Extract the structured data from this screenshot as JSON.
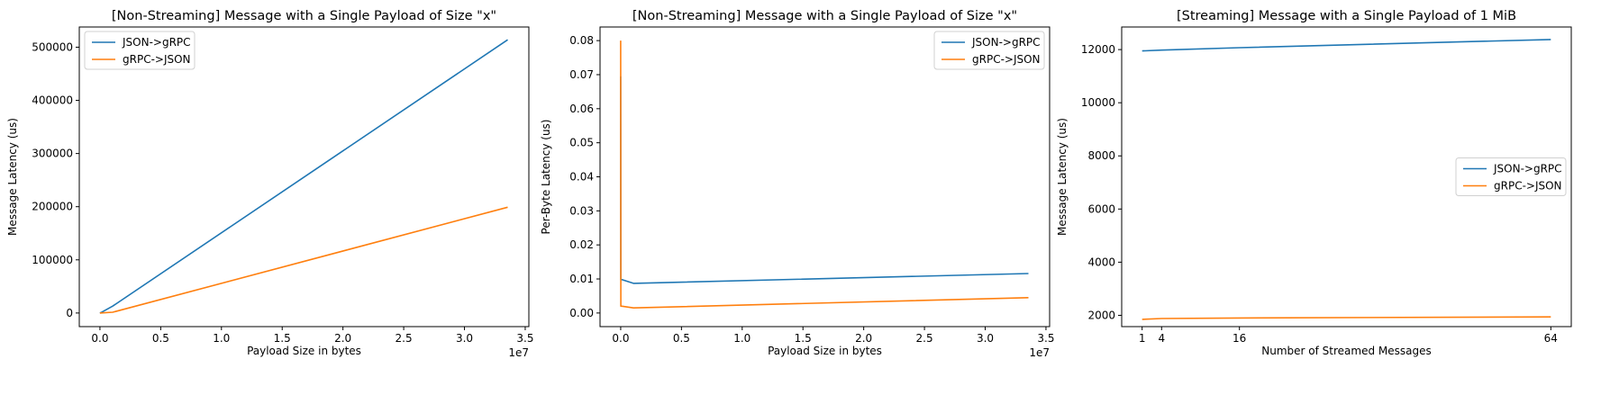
{
  "colors": {
    "series1": "#1f77b4",
    "series2": "#ff7f0e"
  },
  "chart_data": [
    {
      "type": "line",
      "title": "[Non-Streaming] Message with a Single Payload of Size \"x\"",
      "xlabel": "Payload Size in bytes",
      "ylabel": "Message Latency (us)",
      "x_offset_label": "1e7",
      "xlim": [
        -1700000,
        35300000
      ],
      "ylim": [
        -25600,
        538000
      ],
      "xticks": [
        0,
        5000000,
        10000000,
        15000000,
        20000000,
        25000000,
        30000000,
        35000000
      ],
      "xtick_labels": [
        "0.0",
        "0.5",
        "1.0",
        "1.5",
        "2.0",
        "2.5",
        "3.0",
        "3.5"
      ],
      "yticks": [
        0,
        100000,
        200000,
        300000,
        400000,
        500000
      ],
      "ytick_labels": [
        "0",
        "100000",
        "200000",
        "300000",
        "400000",
        "500000"
      ],
      "legend_position": "upper-left",
      "grid": false,
      "x": [
        1,
        1000,
        10000,
        100000,
        1048576,
        33554432
      ],
      "series": [
        {
          "name": "JSON->gRPC",
          "values": [
            2,
            10,
            98,
            980,
            13000,
            514000
          ]
        },
        {
          "name": "gRPC->JSON",
          "values": [
            1,
            2,
            20,
            200,
            1500,
            199000
          ]
        }
      ]
    },
    {
      "type": "line",
      "title": "[Non-Streaming] Message with a Single Payload of Size \"x\"",
      "xlabel": "Payload Size in bytes",
      "ylabel": "Per-Byte Latency (us)",
      "x_offset_label": "1e7",
      "xlim": [
        -1700000,
        35300000
      ],
      "ylim": [
        -0.004,
        0.084
      ],
      "xticks": [
        0,
        5000000,
        10000000,
        15000000,
        20000000,
        25000000,
        30000000,
        35000000
      ],
      "xtick_labels": [
        "0.0",
        "0.5",
        "1.0",
        "1.5",
        "2.0",
        "2.5",
        "3.0",
        "3.5"
      ],
      "yticks": [
        0,
        0.01,
        0.02,
        0.03,
        0.04,
        0.05,
        0.06,
        0.07,
        0.08
      ],
      "ytick_labels": [
        "0.00",
        "0.01",
        "0.02",
        "0.03",
        "0.04",
        "0.05",
        "0.06",
        "0.07",
        "0.08"
      ],
      "legend_position": "upper-right",
      "grid": false,
      "x": [
        1000,
        10000,
        100000,
        1048576,
        33554432
      ],
      "series": [
        {
          "name": "JSON->gRPC",
          "values": [
            0.0695,
            0.0098,
            0.0098,
            0.0087,
            0.0116
          ]
        },
        {
          "name": "gRPC->JSON",
          "values": [
            0.08,
            0.002,
            0.002,
            0.0015,
            0.0045
          ]
        }
      ]
    },
    {
      "type": "line",
      "title": "[Streaming] Message with a Single Payload of 1 MiB",
      "xlabel": "Number of Streamed Messages",
      "ylabel": "Message Latency (us)",
      "xlim": [
        -2.15,
        67.15
      ],
      "ylim": [
        1575,
        12850
      ],
      "xticks": [
        1,
        4,
        16,
        64
      ],
      "xtick_labels": [
        "1",
        "4",
        "16",
        "64"
      ],
      "yticks": [
        2000,
        4000,
        6000,
        8000,
        10000,
        12000
      ],
      "ytick_labels": [
        "2000",
        "4000",
        "6000",
        "8000",
        "10000",
        "12000"
      ],
      "legend_position": "center-right",
      "grid": false,
      "x": [
        1,
        4,
        16,
        64
      ],
      "series": [
        {
          "name": "JSON->gRPC",
          "values": [
            11950,
            11980,
            12070,
            12380
          ]
        },
        {
          "name": "gRPC->JSON",
          "values": [
            1850,
            1880,
            1900,
            1940
          ]
        }
      ]
    }
  ]
}
